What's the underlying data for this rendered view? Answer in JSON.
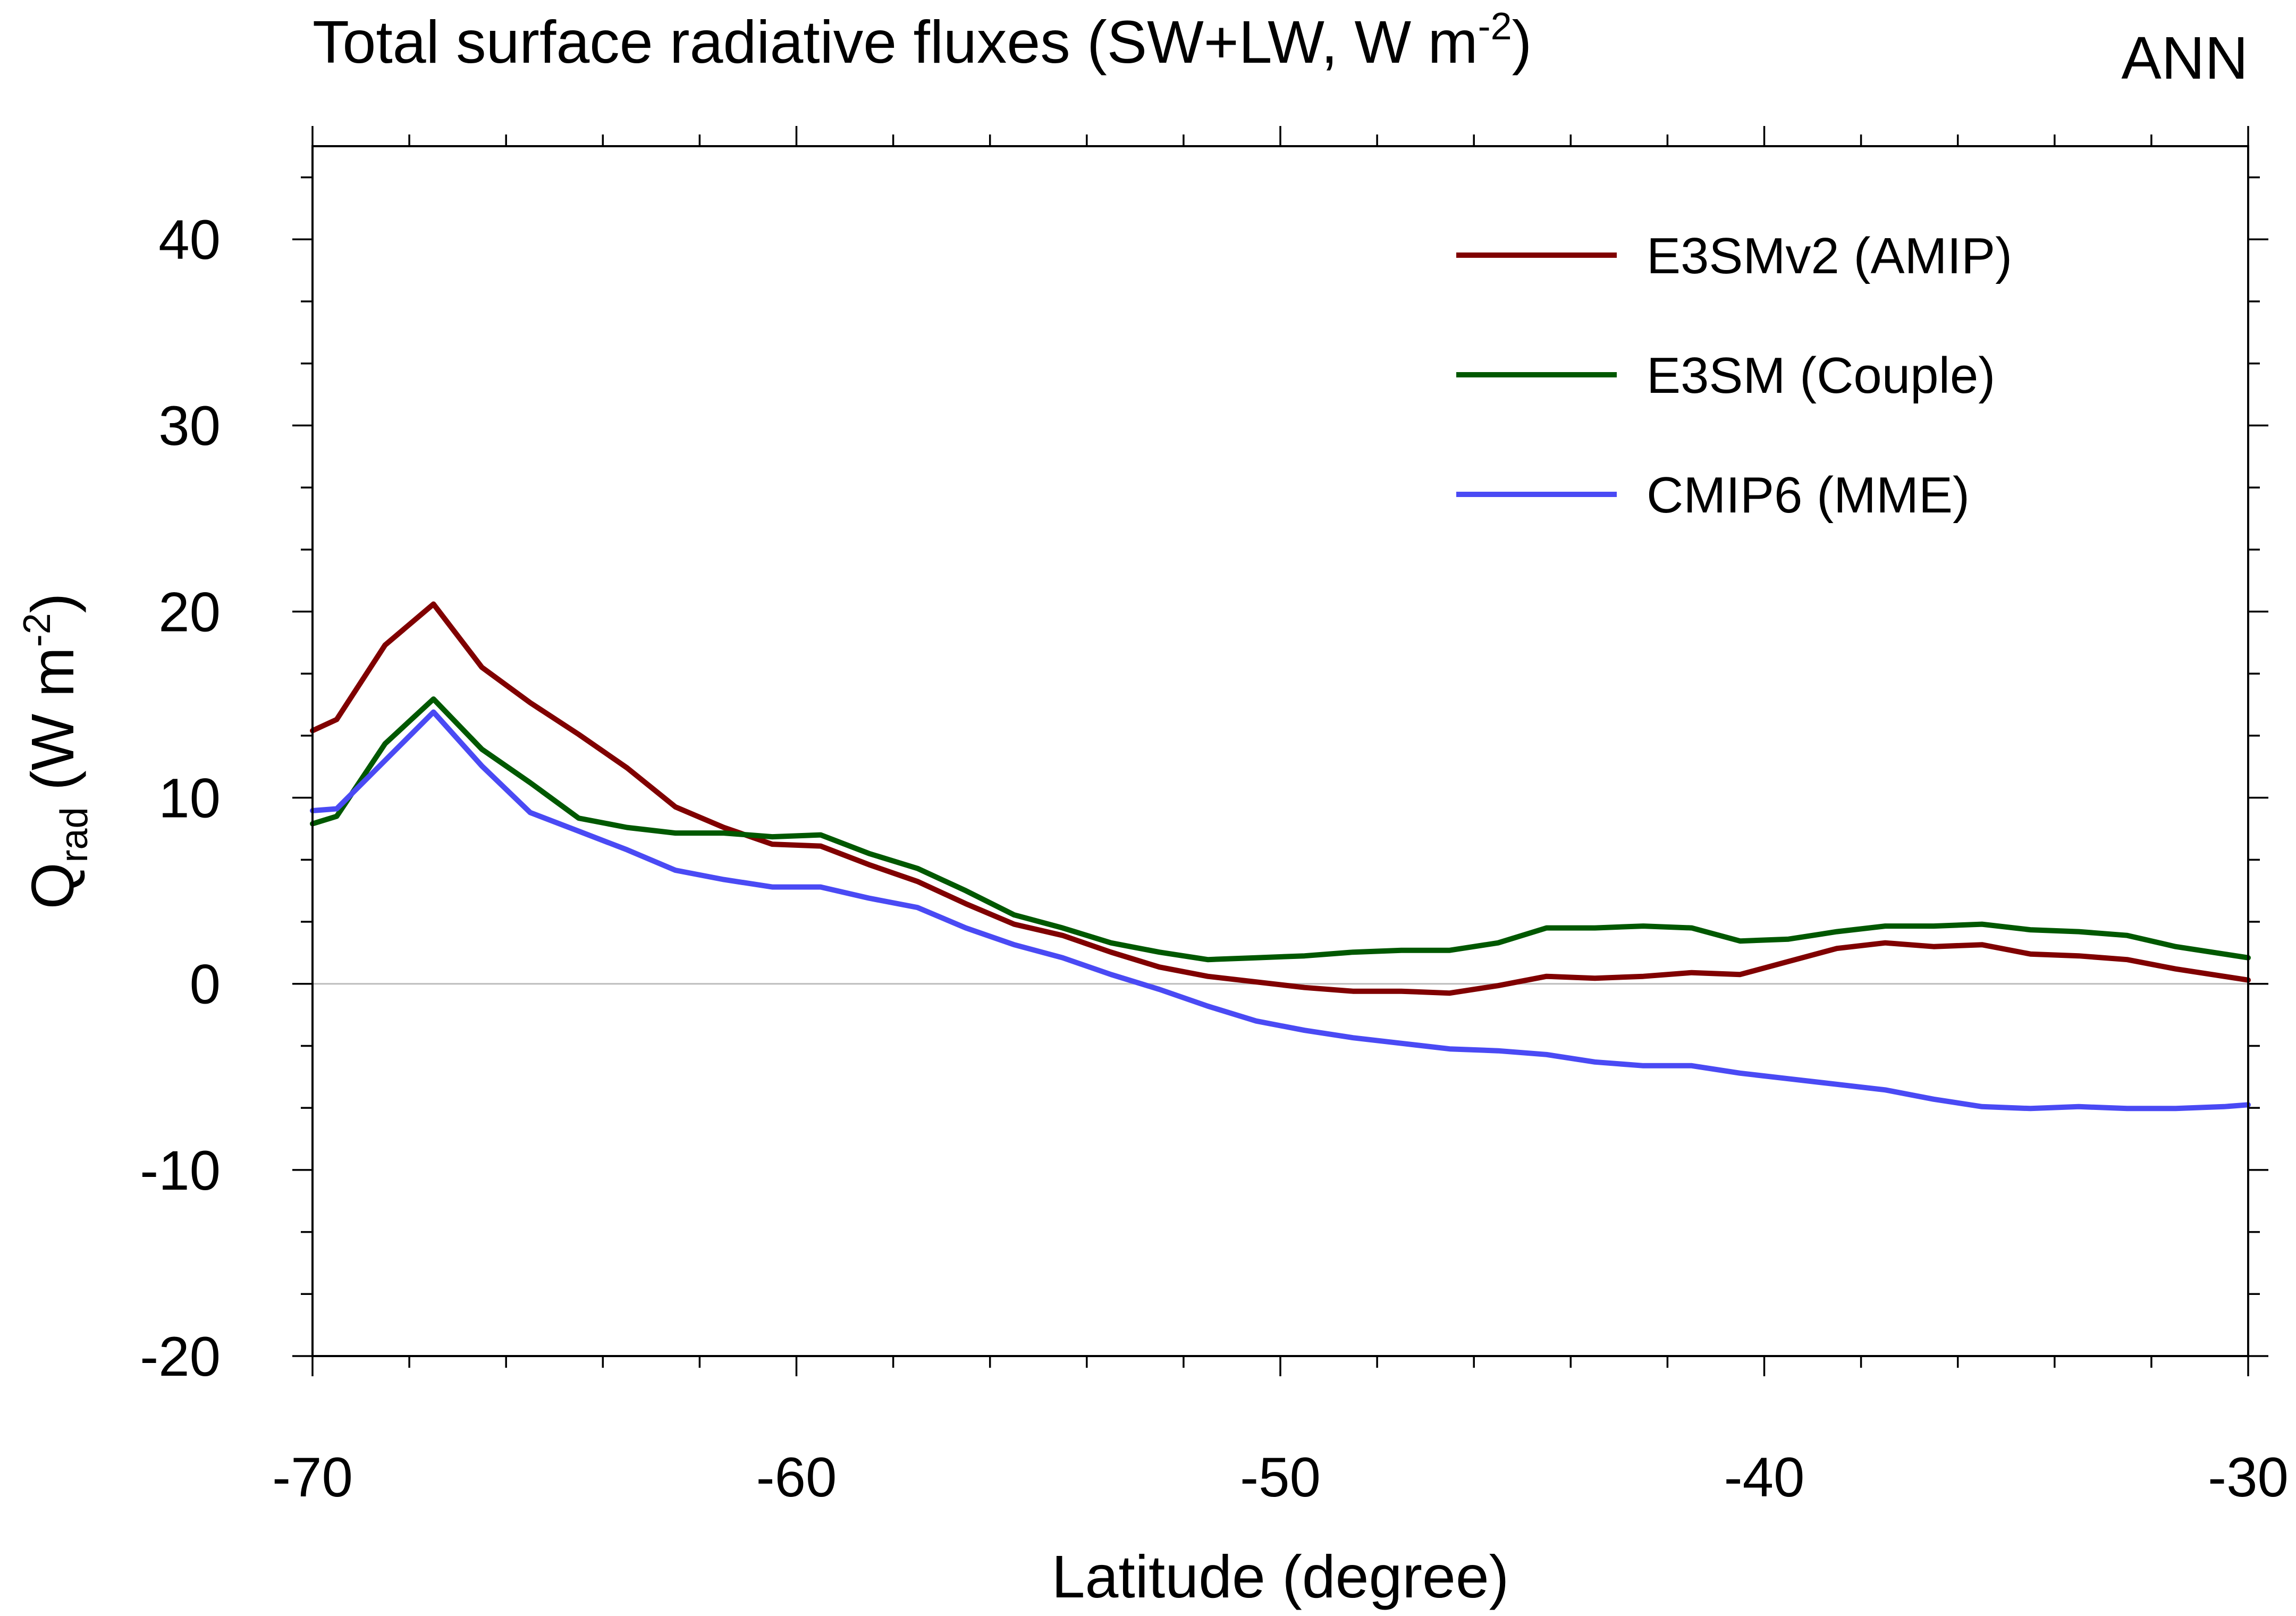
{
  "chart_data": {
    "type": "line",
    "title": "Total surface radiative fluxes (SW+LW, W m-2)",
    "title_parts": {
      "main": "Total surface radiative fluxes (SW+LW, W m",
      "sup": "-2",
      "end": ")"
    },
    "season": "ANN",
    "xlabel": "Latitude (degree)",
    "ylabel": "Qrad (W m-2)",
    "ylabel_parts": {
      "q": "Q",
      "sub": "rad",
      "units": " (W m",
      "sup": "-2",
      "end": ")"
    },
    "xlim": [
      -70,
      -30
    ],
    "ylim": [
      -20,
      45
    ],
    "x_major_ticks": [
      -70,
      -60,
      -50,
      -40,
      -30
    ],
    "x_minor_step": 2,
    "y_major_ticks": [
      -20,
      -10,
      0,
      10,
      20,
      30,
      40
    ],
    "y_minor_step": 3.333,
    "x_tick_labels": [
      "-70",
      "-60",
      "-50",
      "-40",
      "-30"
    ],
    "y_tick_labels": [
      "-20",
      "-10",
      "0",
      "10",
      "20",
      "30",
      "40"
    ],
    "zero_line": true,
    "legend_position": "top-right",
    "x": [
      -70,
      -69.5,
      -68.5,
      -67.5,
      -66.5,
      -65.5,
      -64.5,
      -63.5,
      -62.5,
      -61.5,
      -60.5,
      -59.5,
      -58.5,
      -57.5,
      -56.5,
      -55.5,
      -54.5,
      -53.5,
      -52.5,
      -51.5,
      -50.5,
      -49.5,
      -48.5,
      -47.5,
      -46.5,
      -45.5,
      -44.5,
      -43.5,
      -42.5,
      -41.5,
      -40.5,
      -39.5,
      -38.5,
      -37.5,
      -36.5,
      -35.5,
      -34.5,
      -33.5,
      -32.5,
      -31.5,
      -30.5,
      -30
    ],
    "series": [
      {
        "name": "E3SMv2 (AMIP)",
        "color": "#800000",
        "values": [
          13.6,
          14.2,
          18.2,
          20.4,
          17.0,
          15.1,
          13.4,
          11.6,
          9.5,
          8.4,
          7.5,
          7.4,
          6.4,
          5.5,
          4.3,
          3.2,
          2.6,
          1.7,
          0.9,
          0.4,
          0.1,
          -0.2,
          -0.4,
          -0.4,
          -0.5,
          -0.1,
          0.4,
          0.3,
          0.4,
          0.6,
          0.5,
          1.2,
          1.9,
          2.2,
          2.0,
          2.1,
          1.6,
          1.5,
          1.3,
          0.8,
          0.4,
          0.2
        ]
      },
      {
        "name": "E3SM (Couple)",
        "color": "#005800",
        "values": [
          8.6,
          9.0,
          12.9,
          15.3,
          12.6,
          10.8,
          8.9,
          8.4,
          8.1,
          8.1,
          7.9,
          8.0,
          7.0,
          6.2,
          5.0,
          3.7,
          3.0,
          2.2,
          1.7,
          1.3,
          1.4,
          1.5,
          1.7,
          1.8,
          1.8,
          2.2,
          3.0,
          3.0,
          3.1,
          3.0,
          2.3,
          2.4,
          2.8,
          3.1,
          3.1,
          3.2,
          2.9,
          2.8,
          2.6,
          2.0,
          1.6,
          1.4
        ]
      },
      {
        "name": "CMIP6 (MME)",
        "color": "#4a4af4",
        "values": [
          9.3,
          9.4,
          12.0,
          14.6,
          11.7,
          9.2,
          8.2,
          7.2,
          6.1,
          5.6,
          5.2,
          5.2,
          4.6,
          4.1,
          3.0,
          2.1,
          1.4,
          0.5,
          -0.3,
          -1.2,
          -2.0,
          -2.5,
          -2.9,
          -3.2,
          -3.5,
          -3.6,
          -3.8,
          -4.2,
          -4.4,
          -4.4,
          -4.8,
          -5.1,
          -5.4,
          -5.7,
          -6.2,
          -6.6,
          -6.7,
          -6.6,
          -6.7,
          -6.7,
          -6.6,
          -6.5
        ]
      }
    ]
  }
}
